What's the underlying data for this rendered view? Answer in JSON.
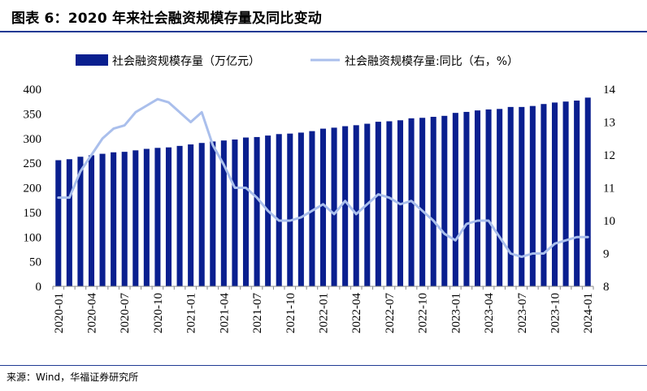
{
  "title": "图表 6：2020 年来社会融资规模存量及同比变动",
  "source": "来源：Wind，华福证券研究所",
  "chart_data": {
    "type": "bar",
    "categories": [
      "2020-01",
      "2020-02",
      "2020-03",
      "2020-04",
      "2020-05",
      "2020-06",
      "2020-07",
      "2020-08",
      "2020-09",
      "2020-10",
      "2020-11",
      "2020-12",
      "2021-01",
      "2021-02",
      "2021-03",
      "2021-04",
      "2021-05",
      "2021-06",
      "2021-07",
      "2021-08",
      "2021-09",
      "2021-10",
      "2021-11",
      "2021-12",
      "2022-01",
      "2022-02",
      "2022-03",
      "2022-04",
      "2022-05",
      "2022-06",
      "2022-07",
      "2022-08",
      "2022-09",
      "2022-10",
      "2022-11",
      "2022-12",
      "2023-01",
      "2023-02",
      "2023-03",
      "2023-04",
      "2023-05",
      "2023-06",
      "2023-07",
      "2023-08",
      "2023-09",
      "2023-10",
      "2023-11",
      "2023-12",
      "2024-01"
    ],
    "tick_labels": [
      "2020-01",
      "2020-04",
      "2020-07",
      "2020-10",
      "2021-01",
      "2021-04",
      "2021-07",
      "2021-10",
      "2022-01",
      "2022-04",
      "2022-07",
      "2022-10",
      "2023-01",
      "2023-04",
      "2023-07",
      "2023-10",
      "2024-01"
    ],
    "series": [
      {
        "name": "社会融资规模存量（万亿元）",
        "type": "bar",
        "axis": "left",
        "color": "#0a1f8f",
        "values": [
          256,
          258,
          263,
          266,
          269,
          272,
          273,
          276,
          279,
          281,
          282,
          285,
          288,
          291,
          294,
          296,
          298,
          302,
          303,
          306,
          309,
          310,
          312,
          315,
          320,
          322,
          325,
          327,
          330,
          334,
          335,
          337,
          341,
          342,
          344,
          346,
          352,
          354,
          357,
          359,
          360,
          364,
          364,
          366,
          370,
          373,
          375,
          377,
          383
        ]
      },
      {
        "name": "社会融资规模存量:同比（右，%）",
        "type": "line",
        "axis": "right",
        "color": "#aabfec",
        "values": [
          10.7,
          10.7,
          11.5,
          12.0,
          12.5,
          12.8,
          12.9,
          13.3,
          13.5,
          13.7,
          13.6,
          13.3,
          13.0,
          13.3,
          12.3,
          11.7,
          11.0,
          11.0,
          10.7,
          10.3,
          10.0,
          10.0,
          10.1,
          10.3,
          10.5,
          10.2,
          10.6,
          10.2,
          10.5,
          10.8,
          10.7,
          10.5,
          10.6,
          10.3,
          10.0,
          9.6,
          9.4,
          9.9,
          10.0,
          10.0,
          9.5,
          9.0,
          8.9,
          9.0,
          9.0,
          9.3,
          9.4,
          9.5,
          9.5
        ]
      }
    ],
    "ylim_left": [
      0,
      400
    ],
    "yticks_left": [
      0,
      50,
      100,
      150,
      200,
      250,
      300,
      350,
      400
    ],
    "ylim_right": [
      8,
      14
    ],
    "yticks_right": [
      8,
      9,
      10,
      11,
      12,
      13,
      14
    ],
    "legend_position": "top",
    "grid": false
  }
}
